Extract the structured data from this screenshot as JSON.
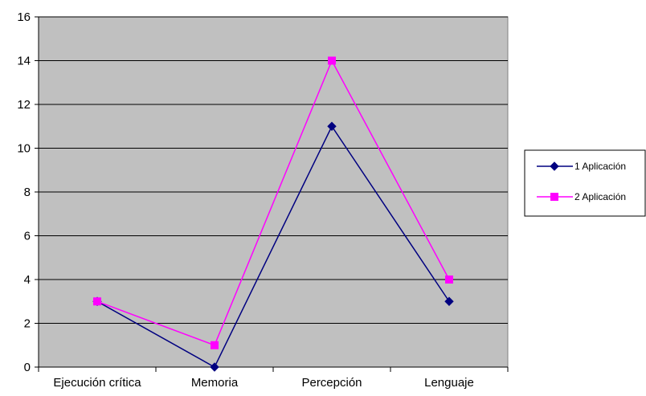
{
  "chart_data": {
    "type": "line",
    "categories": [
      "Ejecución crítica",
      "Memoria",
      "Percepción",
      "Lenguaje"
    ],
    "series": [
      {
        "name": "1 Aplicación",
        "values": [
          3,
          0,
          11,
          3
        ],
        "color": "#000080",
        "marker": "diamond"
      },
      {
        "name": "2 Aplicación",
        "values": [
          3,
          1,
          14,
          4
        ],
        "color": "#ff00ff",
        "marker": "square"
      }
    ],
    "y_ticks": [
      "0",
      "2",
      "4",
      "6",
      "8",
      "10",
      "12",
      "14",
      "16"
    ],
    "ylim": [
      0,
      16
    ],
    "grid": true,
    "legend_position": "right",
    "plot_background": "#c0c0c0",
    "title": "",
    "xlabel": "",
    "ylabel": ""
  }
}
